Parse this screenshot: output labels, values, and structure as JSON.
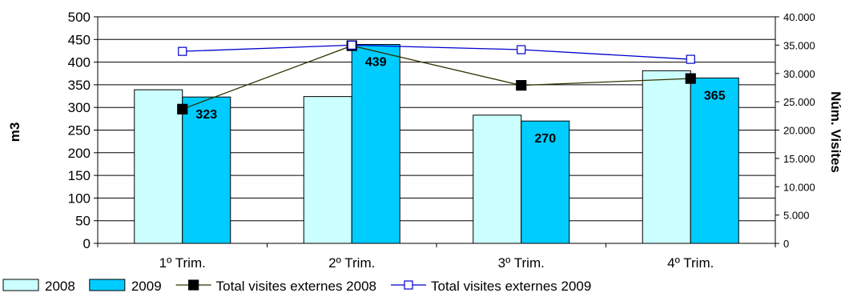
{
  "chart_data": {
    "type": "bar",
    "categories": [
      "1º Trim.",
      "2º Trim.",
      "3º Trim.",
      "4º Trim."
    ],
    "series": [
      {
        "name": "2008",
        "type": "bar",
        "axis": "left",
        "color": "#ccffff",
        "values": [
          339,
          324,
          283,
          381
        ]
      },
      {
        "name": "2009",
        "type": "bar",
        "axis": "left",
        "color": "#00ccff",
        "values": [
          323,
          439,
          270,
          365
        ]
      },
      {
        "name": "Total visites externes 2008",
        "type": "line",
        "axis": "right",
        "color": "#333300",
        "marker": "filled-square",
        "values": [
          23700,
          34900,
          27900,
          29100
        ]
      },
      {
        "name": "Total visites externes 2009",
        "type": "line",
        "axis": "right",
        "color": "#0000cc",
        "marker": "open-square",
        "values": [
          33900,
          35000,
          34200,
          32500
        ]
      }
    ],
    "data_labels": {
      "series": "2009",
      "values": [
        "323",
        "439",
        "270",
        "365"
      ]
    },
    "ylabel": "m3",
    "y2label": "Núm. Visites",
    "ylim": [
      0,
      500
    ],
    "y2lim": [
      0,
      40000
    ],
    "yticks": [
      "0",
      "50",
      "100",
      "150",
      "200",
      "250",
      "300",
      "350",
      "400",
      "450",
      "500"
    ],
    "y2ticks": [
      "0",
      "5.000",
      "10.000",
      "15.000",
      "20.000",
      "25.000",
      "30.000",
      "35.000",
      "40.000"
    ],
    "grid": true,
    "legend_position": "bottom"
  }
}
